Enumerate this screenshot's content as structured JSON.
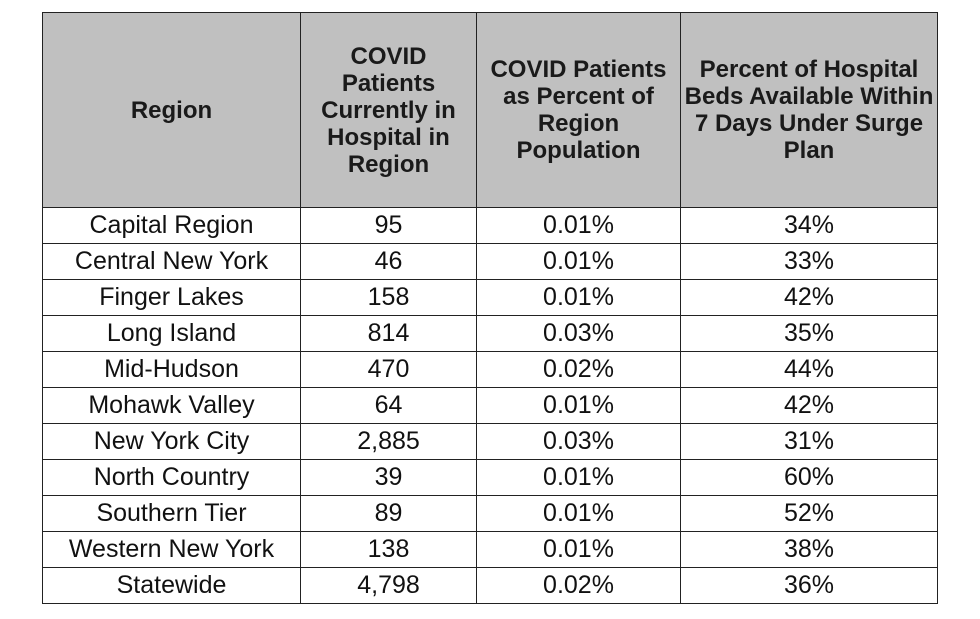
{
  "table": {
    "headers": [
      "Region",
      "COVID Patients Currently in Hospital in Region",
      "COVID Patients as Percent of Region Population",
      "Percent of Hospital Beds Available Within 7 Days Under Surge Plan"
    ],
    "rows": [
      [
        "Capital Region",
        "95",
        "0.01%",
        "34%"
      ],
      [
        "Central New York",
        "46",
        "0.01%",
        "33%"
      ],
      [
        "Finger Lakes",
        "158",
        "0.01%",
        "42%"
      ],
      [
        "Long Island",
        "814",
        "0.03%",
        "35%"
      ],
      [
        "Mid-Hudson",
        "470",
        "0.02%",
        "44%"
      ],
      [
        "Mohawk Valley",
        "64",
        "0.01%",
        "42%"
      ],
      [
        "New York City",
        "2,885",
        "0.03%",
        "31%"
      ],
      [
        "North Country",
        "39",
        "0.01%",
        "60%"
      ],
      [
        "Southern Tier",
        "89",
        "0.01%",
        "52%"
      ],
      [
        "Western New York",
        "138",
        "0.01%",
        "38%"
      ],
      [
        "Statewide",
        "4,798",
        "0.02%",
        "36%"
      ]
    ]
  },
  "colors": {
    "header_background": "#c0c0c0",
    "border": "#222222",
    "text": "#111111"
  }
}
